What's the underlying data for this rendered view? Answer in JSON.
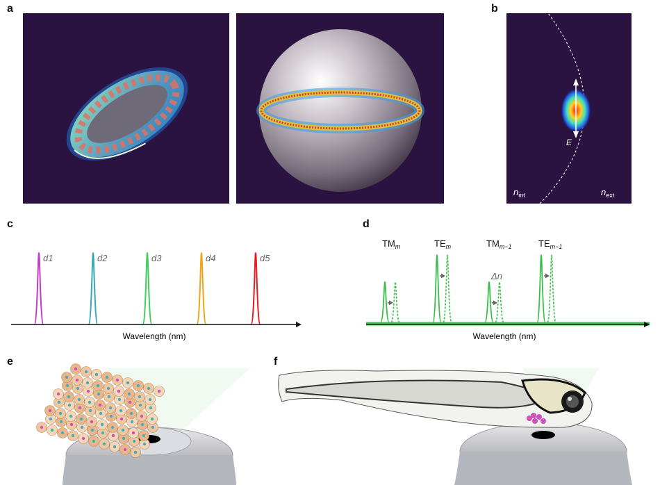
{
  "panels": {
    "a": {
      "label": "a"
    },
    "b": {
      "label": "b",
      "field": "E",
      "n_int": "n",
      "n_int_sub": "int",
      "n_ext": "n",
      "n_ext_sub": "ext"
    },
    "c": {
      "label": "c",
      "xlabel": "Wavelength (nm)",
      "peaks": [
        {
          "label": "d1",
          "color": "#c040c0"
        },
        {
          "label": "d2",
          "color": "#3aa8b8"
        },
        {
          "label": "d3",
          "color": "#3ccf5a"
        },
        {
          "label": "d4",
          "color": "#f0a418"
        },
        {
          "label": "d5",
          "color": "#e8191f"
        }
      ]
    },
    "d": {
      "label": "d",
      "xlabel": "Wavelength (nm)",
      "shift": "Δn",
      "modes": [
        {
          "base": "TM",
          "sub": "m"
        },
        {
          "base": "TE",
          "sub": "m"
        },
        {
          "base": "TM",
          "sub": "m−1"
        },
        {
          "base": "TE",
          "sub": "m−1"
        }
      ]
    },
    "e": {
      "label": "e"
    },
    "f": {
      "label": "f"
    }
  },
  "colors": {
    "panel_bg": "#2a1340",
    "green": "#3cbf4a",
    "axis": "#111111"
  },
  "chart_data": [
    {
      "type": "line",
      "panel": "c",
      "xlabel": "Wavelength (nm)",
      "ylabel": "",
      "series": [
        {
          "name": "d1",
          "x": [
            1
          ],
          "values": [
            1
          ]
        },
        {
          "name": "d2",
          "x": [
            2
          ],
          "values": [
            1
          ]
        },
        {
          "name": "d3",
          "x": [
            3
          ],
          "values": [
            1
          ]
        },
        {
          "name": "d4",
          "x": [
            4
          ],
          "values": [
            1
          ]
        },
        {
          "name": "d5",
          "x": [
            5
          ],
          "values": [
            1
          ]
        }
      ]
    },
    {
      "type": "line",
      "panel": "d",
      "xlabel": "Wavelength (nm)",
      "ylabel": "",
      "series": [
        {
          "x": [
            1,
            2,
            3,
            4
          ],
          "values": [
            0.6,
            1.0,
            0.6,
            1.0
          ]
        },
        {
          "x": [
            1.2,
            2.2,
            3.2,
            4.2
          ],
          "values": [
            0.6,
            1.0,
            0.6,
            1.0
          ]
        }
      ]
    }
  ]
}
